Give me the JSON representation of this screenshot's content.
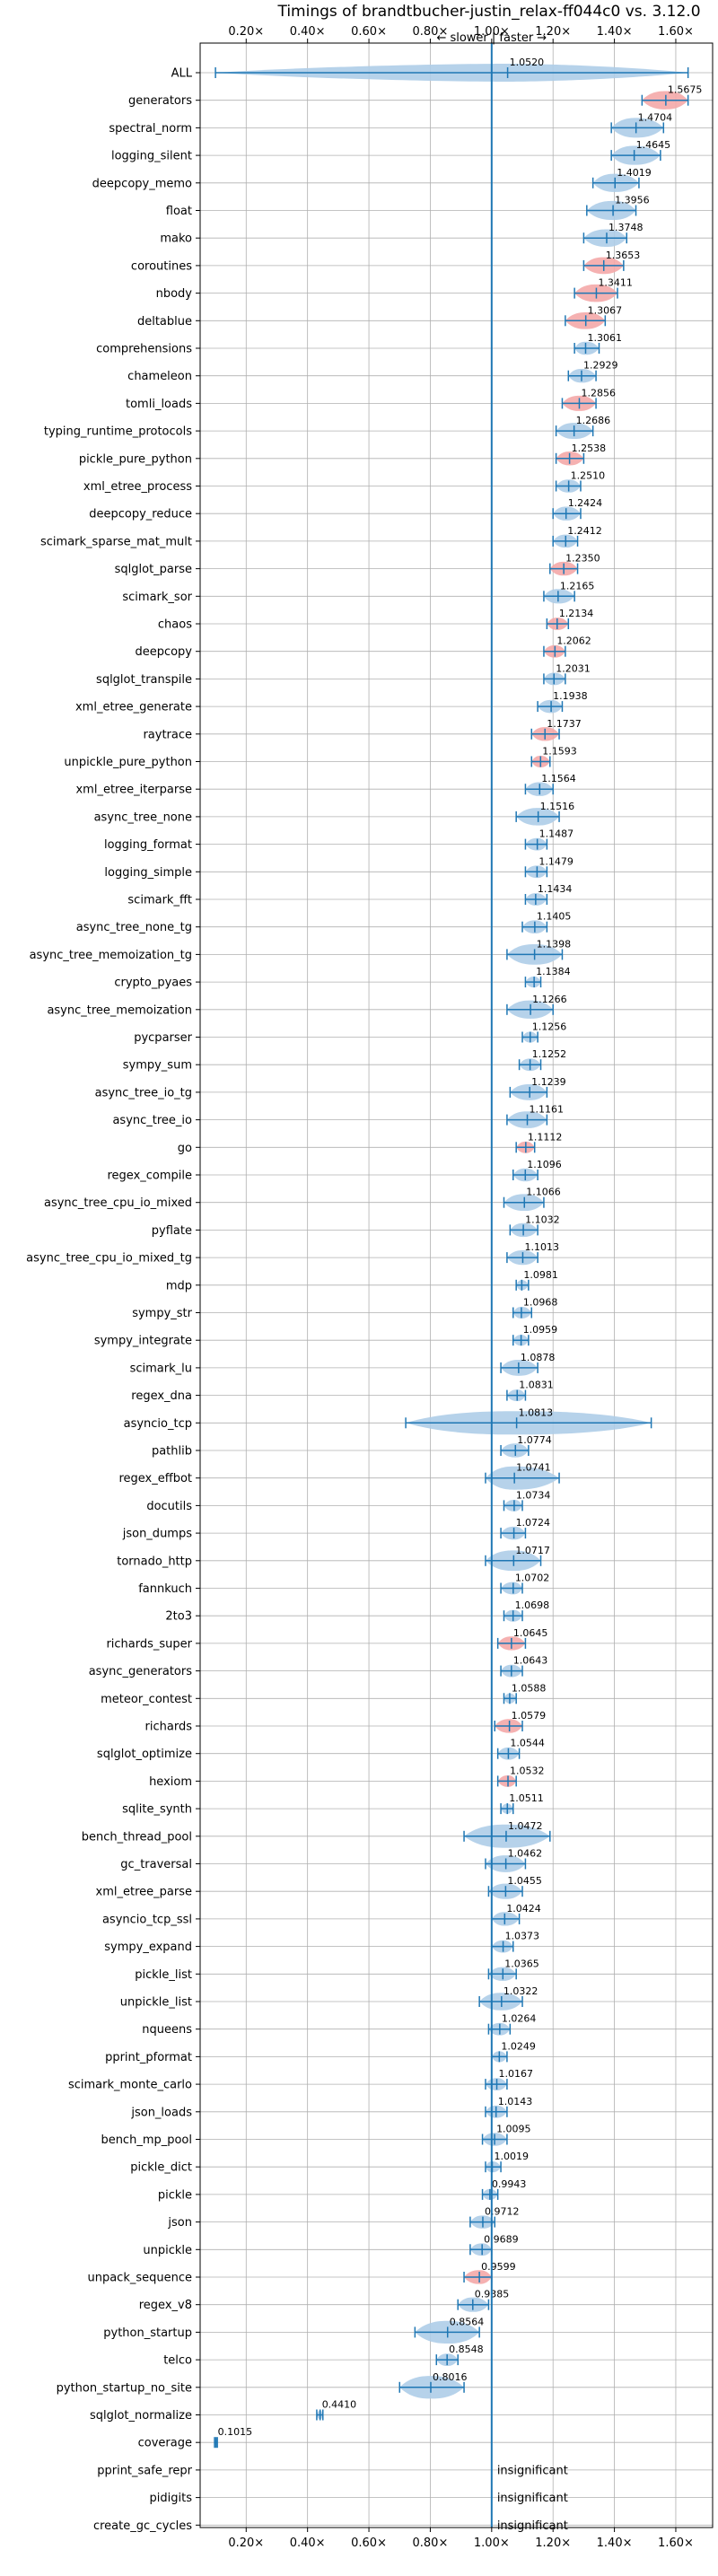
{
  "chart_data": {
    "type": "violin",
    "title": "Timings of brandtbucher-justin_relax-ff044c0 vs. 3.12.0",
    "direction_label": "← slower | faster →",
    "x_ticks": [
      "0.20×",
      "0.40×",
      "0.60×",
      "0.80×",
      "1.00×",
      "1.20×",
      "1.40×",
      "1.60×"
    ],
    "x_tick_values": [
      0.2,
      0.4,
      0.6,
      0.8,
      1.0,
      1.2,
      1.4,
      1.6
    ],
    "xlim": [
      0.05,
      1.72
    ],
    "reference_line": 1.0,
    "grid": true,
    "insignificant_label": "insignificant",
    "benchmarks": [
      {
        "name": "ALL",
        "value": 1.052,
        "label": "1.0520",
        "min": 0.1,
        "max": 1.64,
        "highlight": false
      },
      {
        "name": "generators",
        "value": 1.5675,
        "label": "1.5675",
        "min": 1.49,
        "max": 1.64,
        "highlight": true
      },
      {
        "name": "spectral_norm",
        "value": 1.4704,
        "label": "1.4704",
        "min": 1.39,
        "max": 1.56,
        "highlight": false
      },
      {
        "name": "logging_silent",
        "value": 1.4645,
        "label": "1.4645",
        "min": 1.39,
        "max": 1.55,
        "highlight": false
      },
      {
        "name": "deepcopy_memo",
        "value": 1.4019,
        "label": "1.4019",
        "min": 1.33,
        "max": 1.48,
        "highlight": false
      },
      {
        "name": "float",
        "value": 1.3956,
        "label": "1.3956",
        "min": 1.31,
        "max": 1.47,
        "highlight": false
      },
      {
        "name": "mako",
        "value": 1.3748,
        "label": "1.3748",
        "min": 1.3,
        "max": 1.44,
        "highlight": false
      },
      {
        "name": "coroutines",
        "value": 1.3653,
        "label": "1.3653",
        "min": 1.3,
        "max": 1.43,
        "highlight": true
      },
      {
        "name": "nbody",
        "value": 1.3411,
        "label": "1.3411",
        "min": 1.27,
        "max": 1.41,
        "highlight": true
      },
      {
        "name": "deltablue",
        "value": 1.3067,
        "label": "1.3067",
        "min": 1.24,
        "max": 1.37,
        "highlight": true
      },
      {
        "name": "comprehensions",
        "value": 1.3061,
        "label": "1.3061",
        "min": 1.27,
        "max": 1.35,
        "highlight": false
      },
      {
        "name": "chameleon",
        "value": 1.2929,
        "label": "1.2929",
        "min": 1.25,
        "max": 1.34,
        "highlight": false
      },
      {
        "name": "tomli_loads",
        "value": 1.2856,
        "label": "1.2856",
        "min": 1.23,
        "max": 1.34,
        "highlight": true
      },
      {
        "name": "typing_runtime_protocols",
        "value": 1.2686,
        "label": "1.2686",
        "min": 1.21,
        "max": 1.33,
        "highlight": false
      },
      {
        "name": "pickle_pure_python",
        "value": 1.2538,
        "label": "1.2538",
        "min": 1.21,
        "max": 1.3,
        "highlight": true
      },
      {
        "name": "xml_etree_process",
        "value": 1.251,
        "label": "1.2510",
        "min": 1.21,
        "max": 1.29,
        "highlight": false
      },
      {
        "name": "deepcopy_reduce",
        "value": 1.2424,
        "label": "1.2424",
        "min": 1.2,
        "max": 1.29,
        "highlight": false
      },
      {
        "name": "scimark_sparse_mat_mult",
        "value": 1.2412,
        "label": "1.2412",
        "min": 1.2,
        "max": 1.28,
        "highlight": false
      },
      {
        "name": "sqlglot_parse",
        "value": 1.235,
        "label": "1.2350",
        "min": 1.19,
        "max": 1.28,
        "highlight": true
      },
      {
        "name": "scimark_sor",
        "value": 1.2165,
        "label": "1.2165",
        "min": 1.17,
        "max": 1.27,
        "highlight": false
      },
      {
        "name": "chaos",
        "value": 1.2134,
        "label": "1.2134",
        "min": 1.18,
        "max": 1.25,
        "highlight": true
      },
      {
        "name": "deepcopy",
        "value": 1.2062,
        "label": "1.2062",
        "min": 1.17,
        "max": 1.24,
        "highlight": true
      },
      {
        "name": "sqlglot_transpile",
        "value": 1.2031,
        "label": "1.2031",
        "min": 1.17,
        "max": 1.24,
        "highlight": false
      },
      {
        "name": "xml_etree_generate",
        "value": 1.1938,
        "label": "1.1938",
        "min": 1.15,
        "max": 1.23,
        "highlight": false
      },
      {
        "name": "raytrace",
        "value": 1.1737,
        "label": "1.1737",
        "min": 1.13,
        "max": 1.22,
        "highlight": true
      },
      {
        "name": "unpickle_pure_python",
        "value": 1.1593,
        "label": "1.1593",
        "min": 1.13,
        "max": 1.19,
        "highlight": true
      },
      {
        "name": "xml_etree_iterparse",
        "value": 1.1564,
        "label": "1.1564",
        "min": 1.11,
        "max": 1.2,
        "highlight": false
      },
      {
        "name": "async_tree_none",
        "value": 1.1516,
        "label": "1.1516",
        "min": 1.08,
        "max": 1.22,
        "highlight": false
      },
      {
        "name": "logging_format",
        "value": 1.1487,
        "label": "1.1487",
        "min": 1.11,
        "max": 1.18,
        "highlight": false
      },
      {
        "name": "logging_simple",
        "value": 1.1479,
        "label": "1.1479",
        "min": 1.11,
        "max": 1.18,
        "highlight": false
      },
      {
        "name": "scimark_fft",
        "value": 1.1434,
        "label": "1.1434",
        "min": 1.11,
        "max": 1.18,
        "highlight": false
      },
      {
        "name": "async_tree_none_tg",
        "value": 1.1405,
        "label": "1.1405",
        "min": 1.1,
        "max": 1.18,
        "highlight": false
      },
      {
        "name": "async_tree_memoization_tg",
        "value": 1.1398,
        "label": "1.1398",
        "min": 1.05,
        "max": 1.23,
        "highlight": false
      },
      {
        "name": "crypto_pyaes",
        "value": 1.1384,
        "label": "1.1384",
        "min": 1.11,
        "max": 1.16,
        "highlight": false
      },
      {
        "name": "async_tree_memoization",
        "value": 1.1266,
        "label": "1.1266",
        "min": 1.05,
        "max": 1.2,
        "highlight": false
      },
      {
        "name": "pycparser",
        "value": 1.1256,
        "label": "1.1256",
        "min": 1.1,
        "max": 1.15,
        "highlight": false
      },
      {
        "name": "sympy_sum",
        "value": 1.1252,
        "label": "1.1252",
        "min": 1.09,
        "max": 1.16,
        "highlight": false
      },
      {
        "name": "async_tree_io_tg",
        "value": 1.1239,
        "label": "1.1239",
        "min": 1.06,
        "max": 1.18,
        "highlight": false
      },
      {
        "name": "async_tree_io",
        "value": 1.1161,
        "label": "1.1161",
        "min": 1.05,
        "max": 1.18,
        "highlight": false
      },
      {
        "name": "go",
        "value": 1.1112,
        "label": "1.1112",
        "min": 1.08,
        "max": 1.14,
        "highlight": true
      },
      {
        "name": "regex_compile",
        "value": 1.1096,
        "label": "1.1096",
        "min": 1.07,
        "max": 1.15,
        "highlight": false
      },
      {
        "name": "async_tree_cpu_io_mixed",
        "value": 1.1066,
        "label": "1.1066",
        "min": 1.04,
        "max": 1.17,
        "highlight": false
      },
      {
        "name": "pyflate",
        "value": 1.1032,
        "label": "1.1032",
        "min": 1.06,
        "max": 1.15,
        "highlight": false
      },
      {
        "name": "async_tree_cpu_io_mixed_tg",
        "value": 1.1013,
        "label": "1.1013",
        "min": 1.05,
        "max": 1.15,
        "highlight": false
      },
      {
        "name": "mdp",
        "value": 1.0981,
        "label": "1.0981",
        "min": 1.08,
        "max": 1.12,
        "highlight": false
      },
      {
        "name": "sympy_str",
        "value": 1.0968,
        "label": "1.0968",
        "min": 1.07,
        "max": 1.13,
        "highlight": false
      },
      {
        "name": "sympy_integrate",
        "value": 1.0959,
        "label": "1.0959",
        "min": 1.07,
        "max": 1.12,
        "highlight": false
      },
      {
        "name": "scimark_lu",
        "value": 1.0878,
        "label": "1.0878",
        "min": 1.03,
        "max": 1.15,
        "highlight": false
      },
      {
        "name": "regex_dna",
        "value": 1.0831,
        "label": "1.0831",
        "min": 1.05,
        "max": 1.11,
        "highlight": false
      },
      {
        "name": "asyncio_tcp",
        "value": 1.0813,
        "label": "1.0813",
        "min": 0.72,
        "max": 1.52,
        "highlight": false
      },
      {
        "name": "pathlib",
        "value": 1.0774,
        "label": "1.0774",
        "min": 1.03,
        "max": 1.12,
        "highlight": false
      },
      {
        "name": "regex_effbot",
        "value": 1.0741,
        "label": "1.0741",
        "min": 0.98,
        "max": 1.22,
        "highlight": false
      },
      {
        "name": "docutils",
        "value": 1.0734,
        "label": "1.0734",
        "min": 1.04,
        "max": 1.1,
        "highlight": false
      },
      {
        "name": "json_dumps",
        "value": 1.0724,
        "label": "1.0724",
        "min": 1.03,
        "max": 1.11,
        "highlight": false
      },
      {
        "name": "tornado_http",
        "value": 1.0717,
        "label": "1.0717",
        "min": 0.98,
        "max": 1.16,
        "highlight": false
      },
      {
        "name": "fannkuch",
        "value": 1.0702,
        "label": "1.0702",
        "min": 1.03,
        "max": 1.1,
        "highlight": false
      },
      {
        "name": "2to3",
        "value": 1.0698,
        "label": "1.0698",
        "min": 1.04,
        "max": 1.1,
        "highlight": false
      },
      {
        "name": "richards_super",
        "value": 1.0645,
        "label": "1.0645",
        "min": 1.02,
        "max": 1.11,
        "highlight": true
      },
      {
        "name": "async_generators",
        "value": 1.0643,
        "label": "1.0643",
        "min": 1.03,
        "max": 1.1,
        "highlight": false
      },
      {
        "name": "meteor_contest",
        "value": 1.0588,
        "label": "1.0588",
        "min": 1.04,
        "max": 1.08,
        "highlight": false
      },
      {
        "name": "richards",
        "value": 1.0579,
        "label": "1.0579",
        "min": 1.01,
        "max": 1.1,
        "highlight": true
      },
      {
        "name": "sqlglot_optimize",
        "value": 1.0544,
        "label": "1.0544",
        "min": 1.02,
        "max": 1.09,
        "highlight": false
      },
      {
        "name": "hexiom",
        "value": 1.0532,
        "label": "1.0532",
        "min": 1.02,
        "max": 1.08,
        "highlight": true
      },
      {
        "name": "sqlite_synth",
        "value": 1.0511,
        "label": "1.0511",
        "min": 1.03,
        "max": 1.07,
        "highlight": false
      },
      {
        "name": "bench_thread_pool",
        "value": 1.0472,
        "label": "1.0472",
        "min": 0.91,
        "max": 1.19,
        "highlight": false
      },
      {
        "name": "gc_traversal",
        "value": 1.0462,
        "label": "1.0462",
        "min": 0.98,
        "max": 1.11,
        "highlight": false
      },
      {
        "name": "xml_etree_parse",
        "value": 1.0455,
        "label": "1.0455",
        "min": 0.99,
        "max": 1.1,
        "highlight": false
      },
      {
        "name": "asyncio_tcp_ssl",
        "value": 1.0424,
        "label": "1.0424",
        "min": 1.0,
        "max": 1.09,
        "highlight": false
      },
      {
        "name": "sympy_expand",
        "value": 1.0373,
        "label": "1.0373",
        "min": 1.0,
        "max": 1.07,
        "highlight": false
      },
      {
        "name": "pickle_list",
        "value": 1.0365,
        "label": "1.0365",
        "min": 0.99,
        "max": 1.08,
        "highlight": false
      },
      {
        "name": "unpickle_list",
        "value": 1.0322,
        "label": "1.0322",
        "min": 0.96,
        "max": 1.1,
        "highlight": false
      },
      {
        "name": "nqueens",
        "value": 1.0264,
        "label": "1.0264",
        "min": 0.99,
        "max": 1.06,
        "highlight": false
      },
      {
        "name": "pprint_pformat",
        "value": 1.0249,
        "label": "1.0249",
        "min": 1.0,
        "max": 1.05,
        "highlight": false
      },
      {
        "name": "scimark_monte_carlo",
        "value": 1.0167,
        "label": "1.0167",
        "min": 0.98,
        "max": 1.05,
        "highlight": false
      },
      {
        "name": "json_loads",
        "value": 1.0143,
        "label": "1.0143",
        "min": 0.98,
        "max": 1.05,
        "highlight": false
      },
      {
        "name": "bench_mp_pool",
        "value": 1.0095,
        "label": "1.0095",
        "min": 0.97,
        "max": 1.05,
        "highlight": false
      },
      {
        "name": "pickle_dict",
        "value": 1.0019,
        "label": "1.0019",
        "min": 0.98,
        "max": 1.03,
        "highlight": false
      },
      {
        "name": "pickle",
        "value": 0.9943,
        "label": "0.9943",
        "min": 0.97,
        "max": 1.02,
        "highlight": false
      },
      {
        "name": "json",
        "value": 0.9712,
        "label": "0.9712",
        "min": 0.93,
        "max": 1.01,
        "highlight": false
      },
      {
        "name": "unpickle",
        "value": 0.9689,
        "label": "0.9689",
        "min": 0.93,
        "max": 1.0,
        "highlight": false
      },
      {
        "name": "unpack_sequence",
        "value": 0.9599,
        "label": "0.9599",
        "min": 0.91,
        "max": 1.0,
        "highlight": true
      },
      {
        "name": "regex_v8",
        "value": 0.9385,
        "label": "0.9385",
        "min": 0.89,
        "max": 0.99,
        "highlight": false
      },
      {
        "name": "python_startup",
        "value": 0.8564,
        "label": "0.8564",
        "min": 0.75,
        "max": 0.96,
        "highlight": false
      },
      {
        "name": "telco",
        "value": 0.8548,
        "label": "0.8548",
        "min": 0.82,
        "max": 0.89,
        "highlight": false
      },
      {
        "name": "python_startup_no_site",
        "value": 0.8016,
        "label": "0.8016",
        "min": 0.7,
        "max": 0.91,
        "highlight": false
      },
      {
        "name": "sqlglot_normalize",
        "value": 0.441,
        "label": "0.4410",
        "min": 0.43,
        "max": 0.45,
        "highlight": false
      },
      {
        "name": "coverage",
        "value": 0.1015,
        "label": "0.1015",
        "min": 0.097,
        "max": 0.106,
        "highlight": false
      },
      {
        "name": "pprint_safe_repr",
        "value": null,
        "label": "",
        "min": null,
        "max": null,
        "highlight": false,
        "insignificant": true
      },
      {
        "name": "pidigits",
        "value": null,
        "label": "",
        "min": null,
        "max": null,
        "highlight": false,
        "insignificant": true
      },
      {
        "name": "create_gc_cycles",
        "value": null,
        "label": "",
        "min": null,
        "max": null,
        "highlight": false,
        "insignificant": true
      }
    ],
    "colors": {
      "line": "#1f77b4",
      "violin": "#aecde8",
      "violin_highlight": "#f4a9a8",
      "grid": "#b0b0b0",
      "axis": "#000000"
    }
  }
}
